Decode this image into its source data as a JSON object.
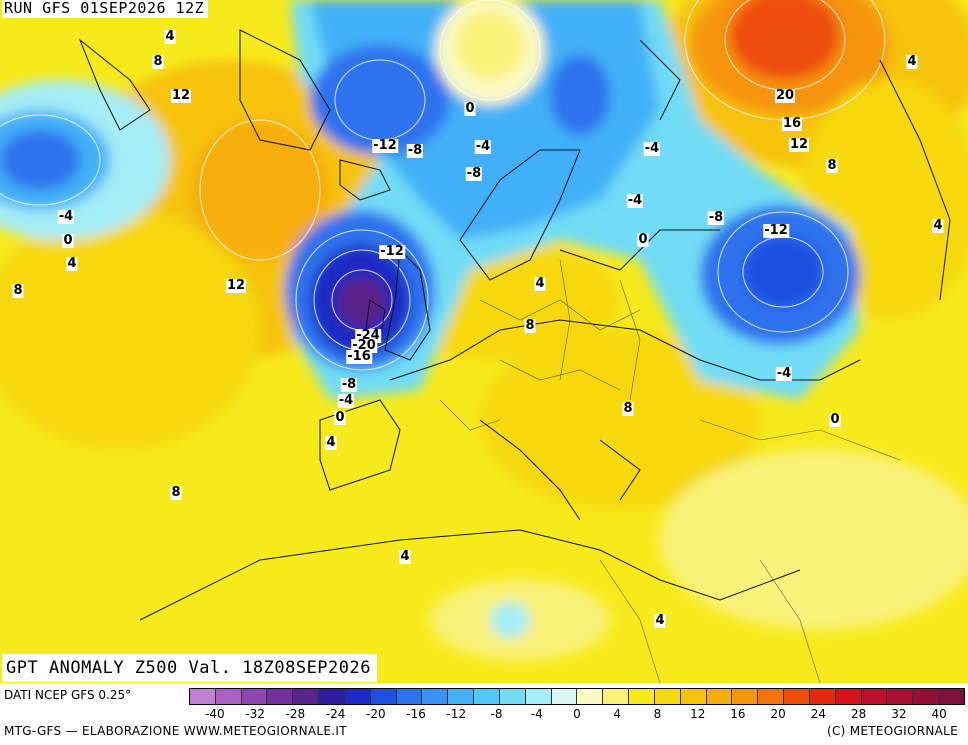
{
  "header": {
    "run_title": "RUN GFS 01SEP2026 12Z"
  },
  "map_title": "GPT ANOMALY Z500 Val. 18Z08SEP2026",
  "footer": {
    "source": "DATI NCEP GFS 0.25°",
    "org": "MTG-GFS — ELABORAZIONE WWW.METEOGIORNALE.IT",
    "copyright": "(C) METEOGIORNALE"
  },
  "legend": {
    "colors": [
      "#c27fd6",
      "#a961c4",
      "#8f47b0",
      "#74309a",
      "#5a2488",
      "#2f1ca0",
      "#1a2cc4",
      "#1f4fe0",
      "#2f72ee",
      "#3a93f4",
      "#43b0f8",
      "#4fcaf8",
      "#71dcf5",
      "#a4ecf6",
      "#d8f7f4",
      "#fbf9c4",
      "#f9f27a",
      "#f7ea1c",
      "#f6d80f",
      "#f6c30c",
      "#f6ad0c",
      "#f6940b",
      "#f4740a",
      "#ee4d0a",
      "#e32a0f",
      "#d4151b",
      "#bf0f28",
      "#a8102f",
      "#921036",
      "#7f0f3c"
    ],
    "ticks": [
      "-40",
      "-32",
      "-28",
      "-24",
      "-20",
      "-16",
      "-12",
      "-8",
      "-4",
      "0",
      "4",
      "8",
      "12",
      "16",
      "20",
      "24",
      "28",
      "32",
      "40"
    ]
  },
  "contour_labels": [
    {
      "text": "4"
    },
    {
      "text": "8"
    },
    {
      "text": "12"
    },
    {
      "text": "-4"
    },
    {
      "text": "0"
    },
    {
      "text": "4"
    },
    {
      "text": "8"
    },
    {
      "text": "12"
    },
    {
      "text": "-12"
    },
    {
      "text": "-8"
    },
    {
      "text": "-4"
    },
    {
      "text": "0"
    },
    {
      "text": "-8"
    },
    {
      "text": "-4"
    },
    {
      "text": "20"
    },
    {
      "text": "16"
    },
    {
      "text": "12"
    },
    {
      "text": "8"
    },
    {
      "text": "4"
    },
    {
      "text": "-4"
    },
    {
      "text": "0"
    },
    {
      "text": "-8"
    },
    {
      "text": "-12"
    },
    {
      "text": "4"
    },
    {
      "text": "-12"
    },
    {
      "text": "4"
    },
    {
      "text": "8"
    },
    {
      "text": "-24"
    },
    {
      "text": "-20"
    },
    {
      "text": "-16"
    },
    {
      "text": "-8"
    },
    {
      "text": "-4"
    },
    {
      "text": "0"
    },
    {
      "text": "4"
    },
    {
      "text": "8"
    },
    {
      "text": "8"
    },
    {
      "text": "-4"
    },
    {
      "text": "0"
    },
    {
      "text": "4"
    },
    {
      "text": "4"
    }
  ]
}
